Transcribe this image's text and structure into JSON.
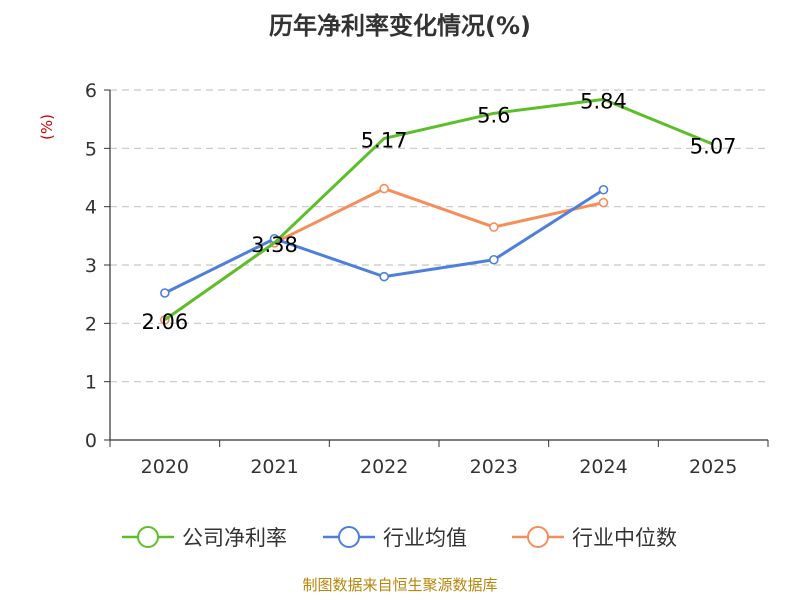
{
  "chart_data": {
    "type": "line",
    "title": "历年净利率变化情况(%)",
    "ylabel": "(%)",
    "categories": [
      "2020",
      "2021",
      "2022",
      "2023",
      "2024",
      "2025"
    ],
    "ylim": [
      0,
      6
    ],
    "yticks": [
      "0",
      "1",
      "2",
      "3",
      "4",
      "5",
      "6"
    ],
    "grid": true,
    "legend_position": "bottom",
    "series": [
      {
        "name": "公司净利率",
        "color": "#5cbf2a",
        "values": [
          2.06,
          3.38,
          5.17,
          5.6,
          5.84,
          5.07
        ],
        "labels": [
          "2.06",
          "3.38",
          "5.17",
          "5.6",
          "5.84",
          "5.07"
        ],
        "show_markers": false
      },
      {
        "name": "行业均值",
        "color": "#4e7fdb",
        "values": [
          2.52,
          3.45,
          2.8,
          3.09,
          4.29,
          null
        ],
        "show_markers": true
      },
      {
        "name": "行业中位数",
        "color": "#f58e5a",
        "values": [
          2.06,
          3.38,
          4.31,
          3.65,
          4.07,
          null
        ],
        "show_markers": true
      }
    ]
  },
  "footer": "制图数据来自恒生聚源数据库"
}
